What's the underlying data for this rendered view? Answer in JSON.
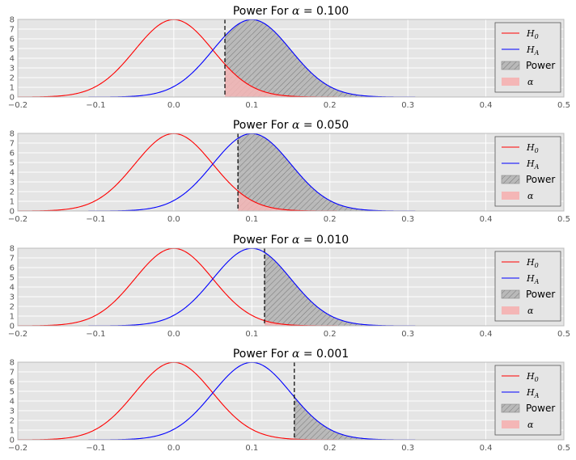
{
  "chart_data": [
    {
      "type": "line",
      "title_prefix": "Power For",
      "alpha_symbol": "α",
      "alpha_label": "= 0.100",
      "alpha": 0.1,
      "critical_value": 0.0655,
      "xlim": [
        -0.2,
        0.5
      ],
      "ylim": [
        0,
        8
      ],
      "x_ticks": [
        "−0.2",
        "−0.1",
        "0.0",
        "0.1",
        "0.2",
        "0.3",
        "0.4",
        "0.5"
      ],
      "y_ticks": [
        "0",
        "1",
        "2",
        "3",
        "4",
        "5",
        "6",
        "7",
        "8"
      ],
      "series": [
        {
          "name": "H0",
          "label_main": "H",
          "label_sub": "0",
          "color": "#ff0000",
          "mean": 0.0,
          "sd": 0.05
        },
        {
          "name": "HA",
          "label_main": "H",
          "label_sub": "A",
          "color": "#0000ff",
          "mean": 0.1,
          "sd": 0.05
        }
      ],
      "fills": [
        {
          "name": "Power",
          "label": "Power",
          "color": "#aaaaaa"
        },
        {
          "name": "alpha",
          "label": "α",
          "color": "#f4b6b6"
        }
      ]
    },
    {
      "type": "line",
      "title_prefix": "Power For",
      "alpha_symbol": "α",
      "alpha_label": "= 0.050",
      "alpha": 0.05,
      "critical_value": 0.0822,
      "xlim": [
        -0.2,
        0.5
      ],
      "ylim": [
        0,
        8
      ],
      "x_ticks": [
        "−0.2",
        "−0.1",
        "0.0",
        "0.1",
        "0.2",
        "0.3",
        "0.4",
        "0.5"
      ],
      "y_ticks": [
        "0",
        "1",
        "2",
        "3",
        "4",
        "5",
        "6",
        "7",
        "8"
      ],
      "series": [
        {
          "name": "H0",
          "label_main": "H",
          "label_sub": "0",
          "color": "#ff0000",
          "mean": 0.0,
          "sd": 0.05
        },
        {
          "name": "HA",
          "label_main": "H",
          "label_sub": "A",
          "color": "#0000ff",
          "mean": 0.1,
          "sd": 0.05
        }
      ],
      "fills": [
        {
          "name": "Power",
          "label": "Power",
          "color": "#aaaaaa"
        },
        {
          "name": "alpha",
          "label": "α",
          "color": "#f4b6b6"
        }
      ]
    },
    {
      "type": "line",
      "title_prefix": "Power For",
      "alpha_symbol": "α",
      "alpha_label": "= 0.010",
      "alpha": 0.01,
      "critical_value": 0.1163,
      "xlim": [
        -0.2,
        0.5
      ],
      "ylim": [
        0,
        8
      ],
      "x_ticks": [
        "−0.2",
        "−0.1",
        "0.0",
        "0.1",
        "0.2",
        "0.3",
        "0.4",
        "0.5"
      ],
      "y_ticks": [
        "0",
        "1",
        "2",
        "3",
        "4",
        "5",
        "6",
        "7",
        "8"
      ],
      "series": [
        {
          "name": "H0",
          "label_main": "H",
          "label_sub": "0",
          "color": "#ff0000",
          "mean": 0.0,
          "sd": 0.05
        },
        {
          "name": "HA",
          "label_main": "H",
          "label_sub": "A",
          "color": "#0000ff",
          "mean": 0.1,
          "sd": 0.05
        }
      ],
      "fills": [
        {
          "name": "Power",
          "label": "Power",
          "color": "#aaaaaa"
        },
        {
          "name": "alpha",
          "label": "α",
          "color": "#f4b6b6"
        }
      ]
    },
    {
      "type": "line",
      "title_prefix": "Power For",
      "alpha_symbol": "α",
      "alpha_label": "= 0.001",
      "alpha": 0.001,
      "critical_value": 0.1545,
      "xlim": [
        -0.2,
        0.5
      ],
      "ylim": [
        0,
        8
      ],
      "x_ticks": [
        "−0.2",
        "−0.1",
        "0.0",
        "0.1",
        "0.2",
        "0.3",
        "0.4",
        "0.5"
      ],
      "y_ticks": [
        "0",
        "1",
        "2",
        "3",
        "4",
        "5",
        "6",
        "7",
        "8"
      ],
      "series": [
        {
          "name": "H0",
          "label_main": "H",
          "label_sub": "0",
          "color": "#ff0000",
          "mean": 0.0,
          "sd": 0.05
        },
        {
          "name": "HA",
          "label_main": "H",
          "label_sub": "A",
          "color": "#0000ff",
          "mean": 0.1,
          "sd": 0.05
        }
      ],
      "fills": [
        {
          "name": "Power",
          "label": "Power",
          "color": "#aaaaaa"
        },
        {
          "name": "alpha",
          "label": "α",
          "color": "#f4b6b6"
        }
      ]
    }
  ],
  "style": {
    "plot_background": "#e5e5e5",
    "grid_color": "#ffffff",
    "legend_background": "#e5e5e5"
  }
}
